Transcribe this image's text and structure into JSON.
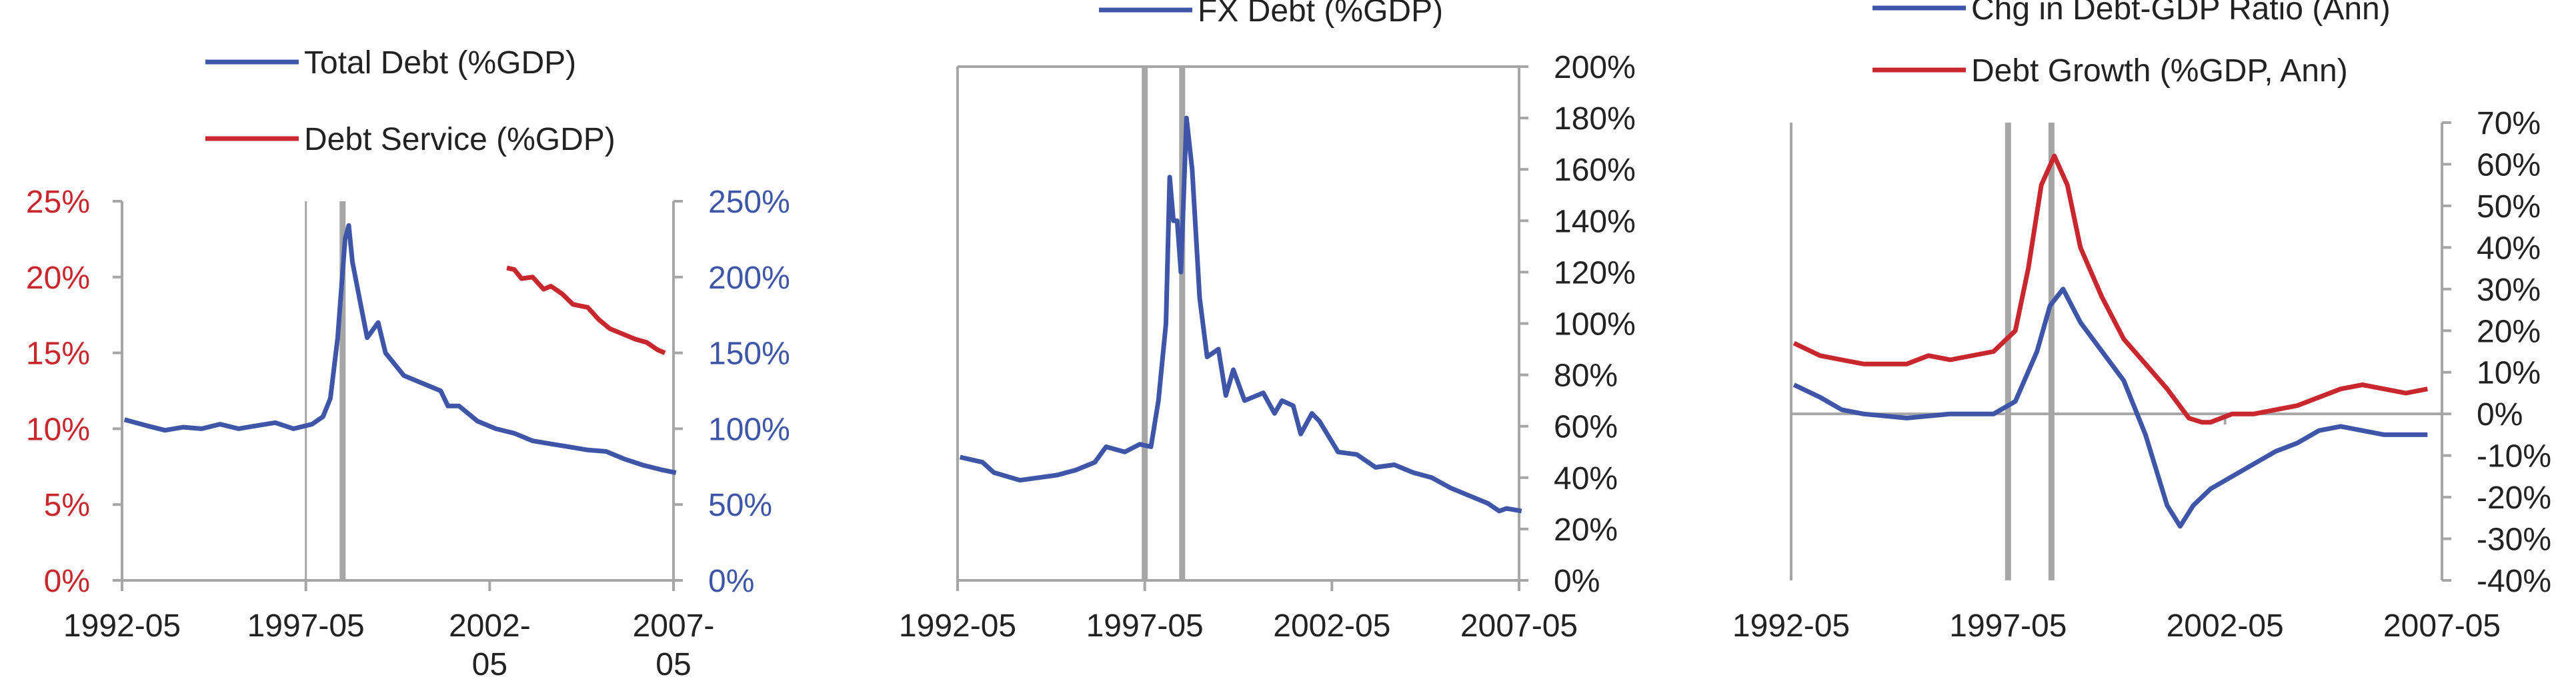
{
  "colors": {
    "blue": "#3f56a8",
    "red": "#c8282d",
    "axis": "#a6a6a6",
    "event": "#a6a6a6",
    "text": "#222222"
  },
  "chart_data": [
    {
      "type": "line",
      "title": "",
      "legend": [
        {
          "name": "Total Debt (%GDP)",
          "color": "#3f56a8",
          "placement": "top"
        },
        {
          "name": "Debt Service (%GDP)",
          "color": "#c8282d",
          "placement": "top"
        }
      ],
      "x_ticks": [
        "1992-05",
        "1997-05",
        "2002-\n05",
        "2007-\n05"
      ],
      "x_range": [
        "1992-05",
        "2007-05"
      ],
      "y_left": {
        "label": "",
        "range": [
          0,
          25
        ],
        "ticks": [
          "0%",
          "5%",
          "10%",
          "15%",
          "20%",
          "25%"
        ],
        "color": "#c8282d"
      },
      "y_right": {
        "label": "",
        "range": [
          0,
          250
        ],
        "ticks": [
          "0%",
          "50%",
          "100%",
          "150%",
          "200%",
          "250%"
        ],
        "color": "#3f56a8"
      },
      "event_lines": [
        "1997-05",
        "1998-05"
      ],
      "series": [
        {
          "name": "Total Debt (%GDP)",
          "axis": "right",
          "color": "#3f56a8",
          "points": [
            [
              1992.4,
              106
            ],
            [
              1993.0,
              102
            ],
            [
              1993.5,
              99
            ],
            [
              1994.0,
              101
            ],
            [
              1994.5,
              100
            ],
            [
              1995.0,
              103
            ],
            [
              1995.5,
              100
            ],
            [
              1996.0,
              102
            ],
            [
              1996.5,
              104
            ],
            [
              1997.0,
              100
            ],
            [
              1997.5,
              103
            ],
            [
              1997.8,
              108
            ],
            [
              1998.0,
              120
            ],
            [
              1998.2,
              160
            ],
            [
              1998.4,
              225
            ],
            [
              1998.5,
              234
            ],
            [
              1998.6,
              210
            ],
            [
              1998.8,
              185
            ],
            [
              1999.0,
              160
            ],
            [
              1999.3,
              170
            ],
            [
              1999.5,
              150
            ],
            [
              2000.0,
              135
            ],
            [
              2000.5,
              130
            ],
            [
              2001.0,
              125
            ],
            [
              2001.2,
              115
            ],
            [
              2001.5,
              115
            ],
            [
              2002.0,
              105
            ],
            [
              2002.5,
              100
            ],
            [
              2003.0,
              97
            ],
            [
              2003.5,
              92
            ],
            [
              2004.0,
              90
            ],
            [
              2004.5,
              88
            ],
            [
              2005.0,
              86
            ],
            [
              2005.5,
              85
            ],
            [
              2006.0,
              80
            ],
            [
              2006.5,
              76
            ],
            [
              2007.0,
              73
            ],
            [
              2007.4,
              71
            ]
          ]
        },
        {
          "name": "Debt Service (%GDP)",
          "axis": "left",
          "color": "#c8282d",
          "points": [
            [
              2002.8,
              20.6
            ],
            [
              2003.0,
              20.5
            ],
            [
              2003.2,
              19.9
            ],
            [
              2003.5,
              20.0
            ],
            [
              2003.8,
              19.2
            ],
            [
              2004.0,
              19.4
            ],
            [
              2004.3,
              18.9
            ],
            [
              2004.6,
              18.2
            ],
            [
              2005.0,
              18.0
            ],
            [
              2005.3,
              17.2
            ],
            [
              2005.6,
              16.6
            ],
            [
              2006.0,
              16.2
            ],
            [
              2006.3,
              15.9
            ],
            [
              2006.6,
              15.7
            ],
            [
              2006.9,
              15.2
            ],
            [
              2007.1,
              15.0
            ]
          ]
        }
      ]
    },
    {
      "type": "line",
      "title": "",
      "legend": [
        {
          "name": "FX Debt (%GDP)",
          "color": "#3f56a8",
          "placement": "top"
        }
      ],
      "x_ticks": [
        "1992-05",
        "1997-05",
        "2002-05",
        "2007-05"
      ],
      "x_range": [
        "1992-05",
        "2007-05"
      ],
      "y_right": {
        "label": "",
        "range": [
          0,
          200
        ],
        "ticks": [
          "0%",
          "20%",
          "40%",
          "60%",
          "80%",
          "100%",
          "120%",
          "140%",
          "160%",
          "180%",
          "200%"
        ],
        "color": "#222222"
      },
      "event_lines": [
        "1997-05",
        "1998-05"
      ],
      "series": [
        {
          "name": "FX Debt (%GDP)",
          "axis": "right",
          "color": "#3f56a8",
          "points": [
            [
              1992.4,
              48
            ],
            [
              1993.0,
              46
            ],
            [
              1993.3,
              42
            ],
            [
              1994.0,
              39
            ],
            [
              1994.5,
              40
            ],
            [
              1995.0,
              41
            ],
            [
              1995.5,
              43
            ],
            [
              1996.0,
              46
            ],
            [
              1996.3,
              52
            ],
            [
              1996.8,
              50
            ],
            [
              1997.2,
              53
            ],
            [
              1997.5,
              52
            ],
            [
              1997.7,
              70
            ],
            [
              1997.9,
              100
            ],
            [
              1998.0,
              157
            ],
            [
              1998.1,
              140
            ],
            [
              1998.2,
              140
            ],
            [
              1998.3,
              120
            ],
            [
              1998.45,
              180
            ],
            [
              1998.6,
              160
            ],
            [
              1998.8,
              110
            ],
            [
              1999.0,
              87
            ],
            [
              1999.3,
              90
            ],
            [
              1999.5,
              72
            ],
            [
              1999.7,
              82
            ],
            [
              2000.0,
              70
            ],
            [
              2000.5,
              73
            ],
            [
              2000.8,
              65
            ],
            [
              2001.0,
              70
            ],
            [
              2001.3,
              68
            ],
            [
              2001.5,
              57
            ],
            [
              2001.8,
              65
            ],
            [
              2002.0,
              62
            ],
            [
              2002.5,
              50
            ],
            [
              2003.0,
              49
            ],
            [
              2003.5,
              44
            ],
            [
              2004.0,
              45
            ],
            [
              2004.5,
              42
            ],
            [
              2005.0,
              40
            ],
            [
              2005.5,
              36
            ],
            [
              2006.0,
              33
            ],
            [
              2006.5,
              30
            ],
            [
              2006.8,
              27
            ],
            [
              2007.0,
              28
            ],
            [
              2007.4,
              27
            ]
          ]
        }
      ]
    },
    {
      "type": "line",
      "title": "",
      "legend": [
        {
          "name": "Chg in Debt-GDP Ratio (Ann)",
          "color": "#3f56a8",
          "placement": "top"
        },
        {
          "name": "Debt Growth (%GDP, Ann)",
          "color": "#c8282d",
          "placement": "top"
        }
      ],
      "x_ticks": [
        "1992-05",
        "1997-05",
        "2002-05",
        "2007-05"
      ],
      "x_range": [
        "1992-05",
        "2007-05"
      ],
      "y_right": {
        "label": "",
        "range": [
          -40,
          70
        ],
        "ticks": [
          "-40%",
          "-30%",
          "-20%",
          "-10%",
          "0%",
          "10%",
          "20%",
          "30%",
          "40%",
          "50%",
          "60%",
          "70%"
        ],
        "color": "#222222"
      },
      "event_lines": [
        "1997-05",
        "1998-05"
      ],
      "zero_line": true,
      "series": [
        {
          "name": "Chg in Debt-GDP Ratio (Ann)",
          "axis": "right",
          "color": "#3f56a8",
          "points": [
            [
              1992.4,
              7
            ],
            [
              1993.0,
              4
            ],
            [
              1993.5,
              1
            ],
            [
              1994.0,
              0
            ],
            [
              1995.0,
              -1
            ],
            [
              1996.0,
              0
            ],
            [
              1997.0,
              0
            ],
            [
              1997.5,
              3
            ],
            [
              1998.0,
              15
            ],
            [
              1998.3,
              26
            ],
            [
              1998.6,
              30
            ],
            [
              1998.8,
              26
            ],
            [
              1999.0,
              22
            ],
            [
              1999.5,
              15
            ],
            [
              2000.0,
              8
            ],
            [
              2000.5,
              -5
            ],
            [
              2001.0,
              -22
            ],
            [
              2001.3,
              -27
            ],
            [
              2001.6,
              -22
            ],
            [
              2002.0,
              -18
            ],
            [
              2002.5,
              -15
            ],
            [
              2003.0,
              -12
            ],
            [
              2003.5,
              -9
            ],
            [
              2004.0,
              -7
            ],
            [
              2004.5,
              -4
            ],
            [
              2005.0,
              -3
            ],
            [
              2005.5,
              -4
            ],
            [
              2006.0,
              -5
            ],
            [
              2006.5,
              -5
            ],
            [
              2007.0,
              -5
            ]
          ]
        },
        {
          "name": "Debt Growth (%GDP, Ann)",
          "axis": "right",
          "color": "#c8282d",
          "points": [
            [
              1992.4,
              17
            ],
            [
              1993.0,
              14
            ],
            [
              1993.5,
              13
            ],
            [
              1994.0,
              12
            ],
            [
              1995.0,
              12
            ],
            [
              1995.5,
              14
            ],
            [
              1996.0,
              13
            ],
            [
              1997.0,
              15
            ],
            [
              1997.5,
              20
            ],
            [
              1997.8,
              35
            ],
            [
              1998.1,
              55
            ],
            [
              1998.4,
              62
            ],
            [
              1998.7,
              55
            ],
            [
              1999.0,
              40
            ],
            [
              1999.5,
              28
            ],
            [
              2000.0,
              18
            ],
            [
              2000.5,
              12
            ],
            [
              2001.0,
              6
            ],
            [
              2001.5,
              -1
            ],
            [
              2001.8,
              -2
            ],
            [
              2002.0,
              -2
            ],
            [
              2002.5,
              0
            ],
            [
              2003.0,
              0
            ],
            [
              2003.5,
              1
            ],
            [
              2004.0,
              2
            ],
            [
              2004.5,
              4
            ],
            [
              2005.0,
              6
            ],
            [
              2005.5,
              7
            ],
            [
              2006.0,
              6
            ],
            [
              2006.5,
              5
            ],
            [
              2007.0,
              6
            ]
          ]
        }
      ]
    }
  ]
}
